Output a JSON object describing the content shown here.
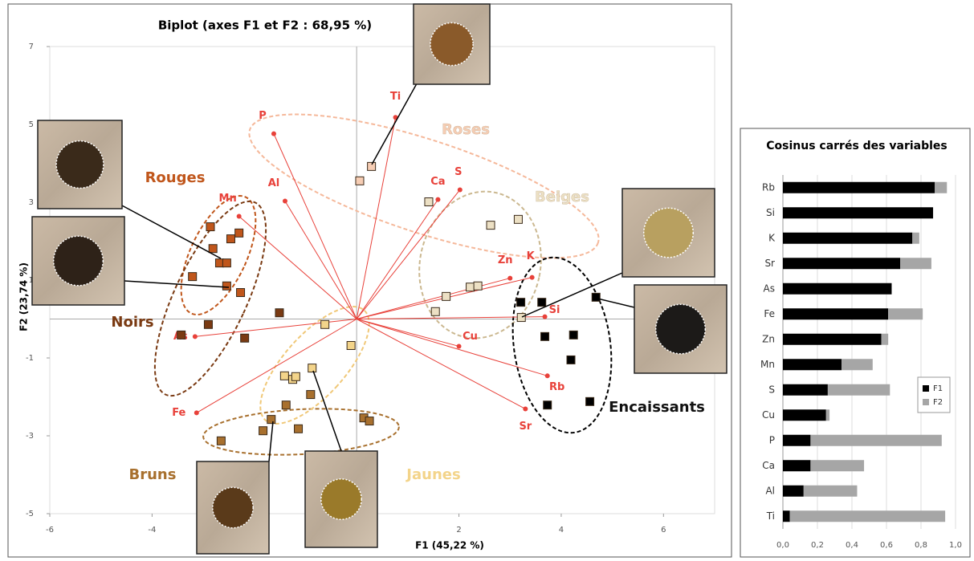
{
  "chart_data": [
    {
      "type": "scatter",
      "title": "Biplot (axes F1 et F2 : 68,95 %)",
      "x_label": "F1 (45,22 %)",
      "y_label": "F2 (23,74 %)",
      "xlim": [
        -6,
        7
      ],
      "xticks": [
        -6,
        -4,
        -2,
        0,
        2,
        4,
        6
      ],
      "ylim": [
        -5,
        7
      ],
      "yticks": [
        -5,
        -3,
        -1,
        1,
        3,
        5,
        7
      ],
      "vectors": {
        "color": "#e8413a",
        "labels": [
          "Ti",
          "P",
          "Al",
          "Mn",
          "Ca",
          "S",
          "Zn",
          "K",
          "Si",
          "Cu",
          "Rb",
          "Sr",
          "As",
          "Fe"
        ],
        "x": [
          0.76,
          -1.62,
          -1.4,
          -2.3,
          1.59,
          2.02,
          3.0,
          3.43,
          3.68,
          2.0,
          3.73,
          3.3,
          -3.16,
          -3.13
        ],
        "y": [
          5.18,
          4.76,
          3.03,
          2.64,
          3.07,
          3.32,
          1.05,
          1.07,
          0.06,
          -0.7,
          -1.46,
          -2.31,
          -0.45,
          -2.41
        ]
      },
      "series": [
        {
          "name": "Rouges",
          "color": "#c0561b",
          "x": [
            -2.86,
            -2.46,
            -2.3,
            -2.81,
            -2.68,
            -2.54,
            -3.21,
            -2.27,
            -2.54
          ],
          "y": [
            2.37,
            2.06,
            2.21,
            1.81,
            1.44,
            1.44,
            1.09,
            0.68,
            0.85
          ]
        },
        {
          "name": "Noirs",
          "color": "#7a3a12",
          "x": [
            -3.43,
            -2.9,
            -2.19,
            -1.51
          ],
          "y": [
            -0.41,
            -0.14,
            -0.49,
            0.16
          ]
        },
        {
          "name": "Bruns",
          "color": "#a8702e",
          "x": [
            -2.65,
            -1.83,
            -1.67,
            -1.14,
            -1.38,
            -0.9,
            0.14,
            0.25
          ],
          "y": [
            -3.13,
            -2.87,
            -2.58,
            -2.82,
            -2.21,
            -1.94,
            -2.54,
            -2.62
          ]
        },
        {
          "name": "Jaunes",
          "color": "#f3d48a",
          "x": [
            -1.41,
            -1.25,
            -1.19,
            -0.87,
            -0.62,
            -0.11
          ],
          "y": [
            -1.46,
            -1.55,
            -1.48,
            -1.26,
            -0.14,
            -0.68
          ]
        },
        {
          "name": "Roses",
          "color": "#f6cdb4",
          "x": [
            0.06,
            0.29
          ],
          "y": [
            3.55,
            3.92
          ]
        },
        {
          "name": "Beiges",
          "color": "#ece0c4",
          "x": [
            1.41,
            2.62,
            3.16,
            2.22,
            2.37,
            1.75,
            1.54,
            3.22
          ],
          "y": [
            3.01,
            2.41,
            2.56,
            0.82,
            0.85,
            0.58,
            0.19,
            0.04
          ]
        },
        {
          "name": "Encaissants",
          "color": "#000000",
          "x": [
            3.21,
            3.62,
            4.68,
            3.68,
            4.24,
            4.19,
            3.73,
            4.56
          ],
          "y": [
            0.43,
            0.43,
            0.56,
            -0.45,
            -0.41,
            -1.05,
            -2.21,
            -2.12
          ]
        }
      ]
    },
    {
      "type": "bar",
      "orientation": "horizontal",
      "stacked": true,
      "title": "Cosinus carrés des variables",
      "categories": [
        "Rb",
        "Si",
        "K",
        "Sr",
        "As",
        "Fe",
        "Zn",
        "Mn",
        "S",
        "Cu",
        "P",
        "Ca",
        "Al",
        "Ti"
      ],
      "series": [
        {
          "name": "F1",
          "color": "#000000",
          "values": [
            0.88,
            0.87,
            0.75,
            0.68,
            0.63,
            0.61,
            0.57,
            0.34,
            0.26,
            0.25,
            0.16,
            0.16,
            0.12,
            0.04
          ]
        },
        {
          "name": "F2",
          "color": "#a6a6a6",
          "values": [
            0.07,
            0,
            0.04,
            0.18,
            0,
            0.2,
            0.04,
            0.18,
            0.36,
            0.02,
            0.76,
            0.31,
            0.31,
            0.9
          ]
        }
      ],
      "xlim": [
        0,
        1
      ],
      "xticks": [
        {
          "value": 0,
          "label": "0,0"
        },
        {
          "value": 0.2,
          "label": "0,2"
        },
        {
          "value": 0.4,
          "label": "0,4"
        },
        {
          "value": 0.6,
          "label": "0,6"
        },
        {
          "value": 0.8,
          "label": "0,8"
        },
        {
          "value": 1,
          "label": "1,0"
        }
      ],
      "grid": true,
      "legend": "right"
    }
  ]
}
